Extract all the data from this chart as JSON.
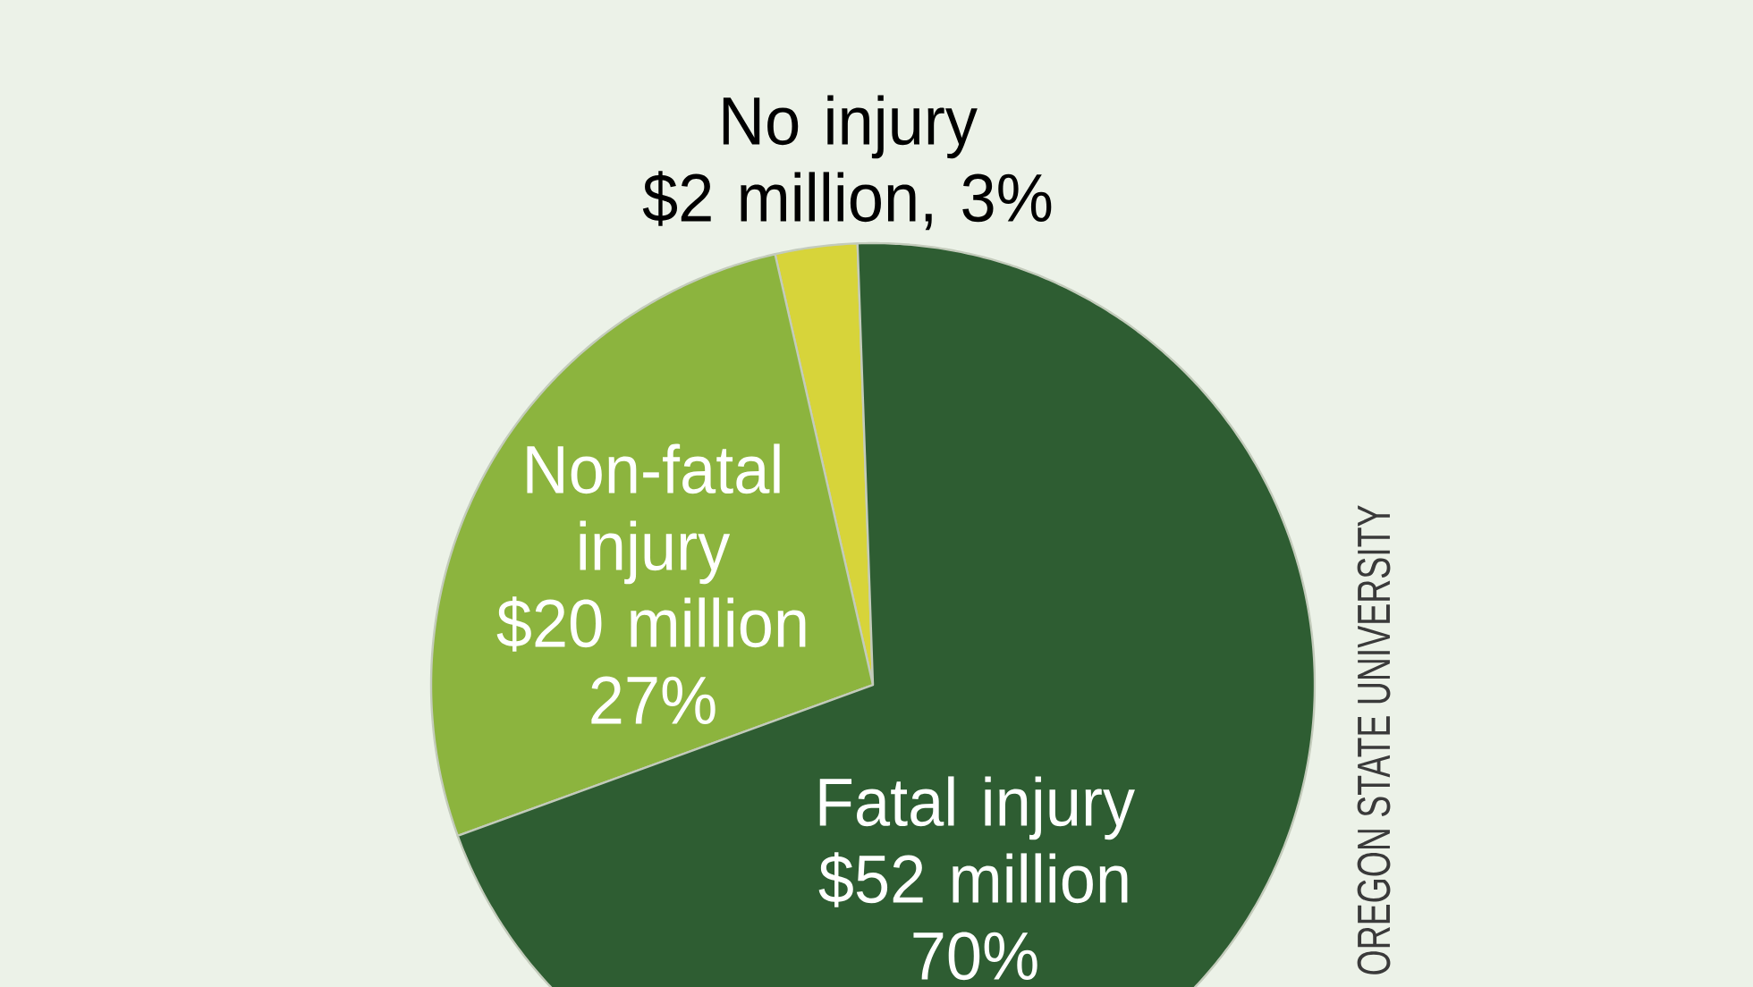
{
  "chart_data": {
    "type": "pie",
    "categories": [
      "No injury",
      "Non-fatal injury",
      "Fatal injury"
    ],
    "values": [
      3,
      27,
      70
    ],
    "colors": [
      "#d7d43a",
      "#8cb43e",
      "#2e5d32"
    ],
    "value_labels": [
      "$2 million, 3%",
      "$20 million 27%",
      "$52 million 70%"
    ],
    "annotations": [
      "OREGON STATE UNIVERSITY"
    ]
  }
}
